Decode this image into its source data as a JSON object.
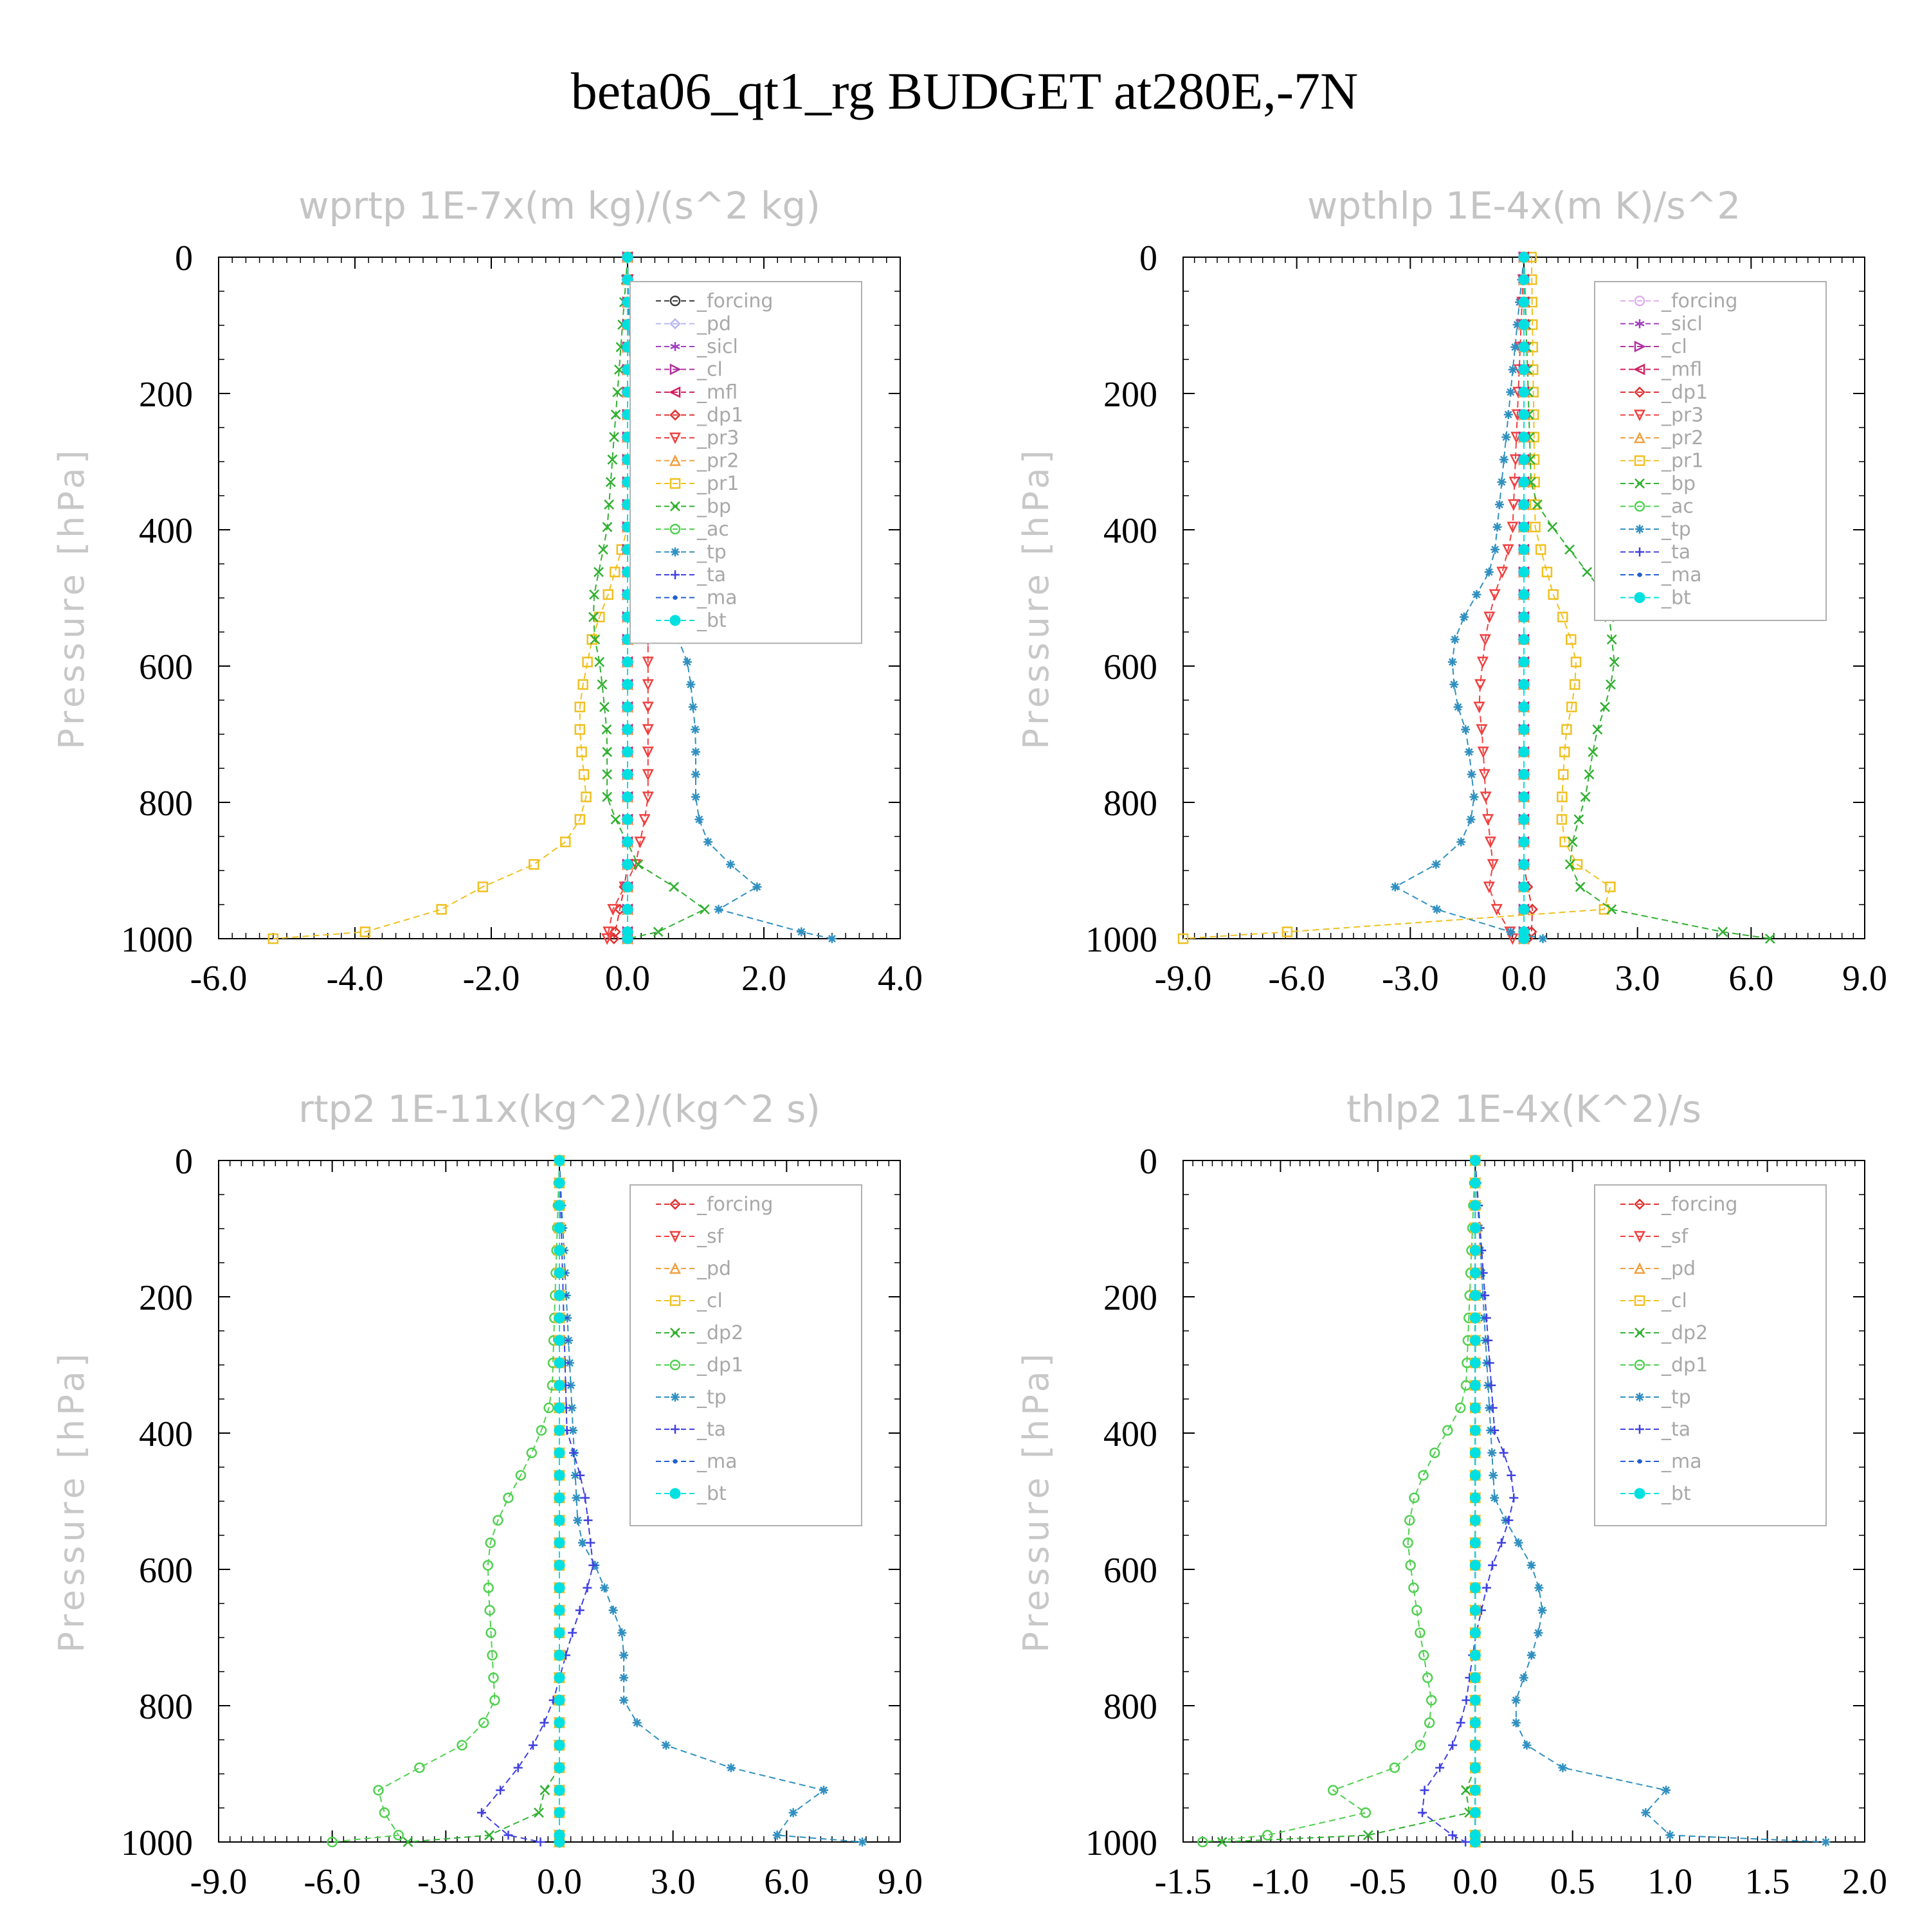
{
  "title": "beta06_qt1_rg  BUDGET at280E,-7N",
  "chart_data": [
    {
      "type": "line",
      "title": "wprtp  1E-7x(m kg)/(s^2 kg)",
      "xlabel": "",
      "ylabel": "Pressure [hPa]",
      "xlim": [
        -6.0,
        4.0
      ],
      "ylim": [
        1000,
        0
      ],
      "xticks": [
        "-6.0",
        "-4.0",
        "-2.0",
        "0.0",
        "2.0",
        "4.0"
      ],
      "yticks": [
        "0",
        "200",
        "400",
        "600",
        "800",
        "1000"
      ],
      "legend_position": "top-right",
      "series": [
        {
          "name": "_forcing",
          "color": "#404040",
          "marker": "circle-dot",
          "p": [
            0,
            1000
          ],
          "x": [
            0,
            0
          ]
        },
        {
          "name": "_pd",
          "color": "#b8b8f0",
          "marker": "diamond",
          "p": [
            0,
            1000
          ],
          "x": [
            0,
            0
          ]
        },
        {
          "name": "_sicl",
          "color": "#a040c0",
          "marker": "star",
          "p": [
            0,
            1000
          ],
          "x": [
            0,
            0
          ]
        },
        {
          "name": "_cl",
          "color": "#b030a0",
          "marker": "tri-right",
          "p": [
            0,
            1000
          ],
          "x": [
            0,
            0
          ]
        },
        {
          "name": "_mfl",
          "color": "#d02060",
          "marker": "tri-left",
          "p": [
            0,
            1000
          ],
          "x": [
            0,
            0
          ]
        },
        {
          "name": "_dp1",
          "color": "#e03030",
          "marker": "diamond",
          "p": [
            0,
            900,
            950,
            1000
          ],
          "x": [
            0,
            0,
            -0.1,
            -0.2
          ]
        },
        {
          "name": "_pr3",
          "color": "#f04040",
          "marker": "tri-down",
          "p": [
            0,
            450,
            500,
            550,
            600,
            700,
            800,
            900,
            950,
            1000
          ],
          "x": [
            0,
            0.1,
            0.3,
            0.3,
            0.3,
            0.3,
            0.3,
            0.1,
            -0.2,
            -0.3
          ]
        },
        {
          "name": "_pr2",
          "color": "#f0a040",
          "marker": "tri-up",
          "p": [
            0,
            1000
          ],
          "x": [
            0,
            0
          ]
        },
        {
          "name": "_pr1",
          "color": "#f0c020",
          "marker": "square",
          "p": [
            0,
            400,
            500,
            550,
            600,
            650,
            700,
            800,
            850,
            900,
            950,
            980,
            1000
          ],
          "x": [
            0,
            0,
            -0.3,
            -0.5,
            -0.6,
            -0.7,
            -0.7,
            -0.6,
            -0.8,
            -1.5,
            -2.8,
            -2.5,
            -5.2
          ]
        },
        {
          "name": "_bp",
          "color": "#30b030",
          "marker": "x",
          "p": [
            0,
            400,
            450,
            500,
            550,
            600,
            700,
            800,
            900,
            950,
            980,
            1000
          ],
          "x": [
            0,
            -0.3,
            -0.4,
            -0.5,
            -0.5,
            -0.4,
            -0.3,
            -0.3,
            0.2,
            1.2,
            0.9,
            0
          ]
        },
        {
          "name": "_ac",
          "color": "#50d050",
          "marker": "circle",
          "p": [
            0,
            1000
          ],
          "x": [
            0,
            0
          ]
        },
        {
          "name": "_tp",
          "color": "#3090c0",
          "marker": "asterisk",
          "p": [
            0,
            450,
            500,
            550,
            600,
            700,
            800,
            850,
            900,
            940,
            960,
            1000
          ],
          "x": [
            0,
            0.1,
            0.4,
            0.7,
            0.9,
            1.0,
            1.0,
            1.1,
            1.6,
            2.1,
            1.2,
            3.0
          ]
        },
        {
          "name": "_ta",
          "color": "#4040e0",
          "marker": "plus",
          "p": [
            0,
            1000
          ],
          "x": [
            0,
            0
          ]
        },
        {
          "name": "_ma",
          "color": "#2060d0",
          "marker": "dot",
          "p": [
            0,
            1000
          ],
          "x": [
            0,
            0
          ]
        },
        {
          "name": "_bt",
          "color": "#00e0e0",
          "marker": "filled-circle",
          "p": [
            0,
            1000
          ],
          "x": [
            0,
            0
          ]
        }
      ]
    },
    {
      "type": "line",
      "title": "wpthlp  1E-4x(m K)/s^2",
      "xlabel": "",
      "ylabel": "Pressure [hPa]",
      "xlim": [
        -9.0,
        9.0
      ],
      "ylim": [
        1000,
        0
      ],
      "xticks": [
        "-9.0",
        "-6.0",
        "-3.0",
        "0.0",
        "3.0",
        "6.0",
        "9.0"
      ],
      "yticks": [
        "0",
        "200",
        "400",
        "600",
        "800",
        "1000"
      ],
      "legend_position": "top-right",
      "series": [
        {
          "name": "_forcing",
          "color": "#e0b0f0",
          "marker": "circle-dot",
          "p": [
            0,
            1000
          ],
          "x": [
            0,
            0
          ]
        },
        {
          "name": "_sicl",
          "color": "#a040c0",
          "marker": "star",
          "p": [
            0,
            1000
          ],
          "x": [
            0,
            0
          ]
        },
        {
          "name": "_cl",
          "color": "#b030a0",
          "marker": "tri-right",
          "p": [
            0,
            1000
          ],
          "x": [
            0,
            0
          ]
        },
        {
          "name": "_mfl",
          "color": "#d02060",
          "marker": "tri-left",
          "p": [
            0,
            1000
          ],
          "x": [
            0,
            0
          ]
        },
        {
          "name": "_dp1",
          "color": "#e03030",
          "marker": "diamond",
          "p": [
            0,
            900,
            950,
            980,
            1000
          ],
          "x": [
            0,
            0,
            0.2,
            0.3,
            0.1
          ]
        },
        {
          "name": "_pr3",
          "color": "#f04040",
          "marker": "tri-down",
          "p": [
            0,
            400,
            450,
            500,
            550,
            600,
            650,
            700,
            800,
            850,
            900,
            940,
            970,
            1000
          ],
          "x": [
            0,
            -0.3,
            -0.5,
            -0.8,
            -1.0,
            -1.1,
            -1.2,
            -1.1,
            -1.0,
            -0.9,
            -0.8,
            -1.0,
            -0.5,
            -0.3
          ]
        },
        {
          "name": "_pr2",
          "color": "#f0a040",
          "marker": "tri-up",
          "p": [
            0,
            1000
          ],
          "x": [
            0,
            0
          ]
        },
        {
          "name": "_pr1",
          "color": "#f0c020",
          "marker": "square",
          "p": [
            0,
            400,
            500,
            550,
            600,
            650,
            700,
            800,
            850,
            900,
            940,
            960,
            1000
          ],
          "x": [
            0.2,
            0.3,
            0.8,
            1.2,
            1.4,
            1.3,
            1.1,
            1.0,
            1.0,
            1.5,
            2.8,
            2.0,
            -9.0
          ]
        },
        {
          "name": "_bp",
          "color": "#30b030",
          "marker": "x",
          "p": [
            0,
            350,
            400,
            450,
            500,
            550,
            600,
            650,
            700,
            800,
            850,
            900,
            950,
            980,
            1000
          ],
          "x": [
            0,
            0.2,
            0.8,
            1.5,
            2.2,
            2.3,
            2.4,
            2.2,
            1.9,
            1.6,
            1.3,
            1.2,
            1.8,
            4.0,
            6.5
          ]
        },
        {
          "name": "_ac",
          "color": "#50d050",
          "marker": "circle",
          "p": [
            0,
            1000
          ],
          "x": [
            0,
            0
          ]
        },
        {
          "name": "_tp",
          "color": "#3090c0",
          "marker": "asterisk",
          "p": [
            0,
            450,
            500,
            550,
            600,
            650,
            700,
            800,
            850,
            900,
            940,
            960,
            980,
            1000
          ],
          "x": [
            0,
            -0.8,
            -1.3,
            -1.8,
            -1.9,
            -1.8,
            -1.5,
            -1.3,
            -1.5,
            -2.5,
            -4.0,
            -2.0,
            -1.2,
            0.5
          ]
        },
        {
          "name": "_ta",
          "color": "#4040e0",
          "marker": "plus",
          "p": [
            0,
            1000
          ],
          "x": [
            0,
            0
          ]
        },
        {
          "name": "_ma",
          "color": "#2060d0",
          "marker": "dot",
          "p": [
            0,
            1000
          ],
          "x": [
            0,
            0
          ]
        },
        {
          "name": "_bt",
          "color": "#00e0e0",
          "marker": "filled-circle",
          "p": [
            0,
            1000
          ],
          "x": [
            0,
            0
          ]
        }
      ]
    },
    {
      "type": "line",
      "title": "rtp2  1E-11x(kg^2)/(kg^2 s)",
      "xlabel": "",
      "ylabel": "Pressure [hPa]",
      "xlim": [
        -9.0,
        9.0
      ],
      "ylim": [
        1000,
        0
      ],
      "xticks": [
        "-9.0",
        "-6.0",
        "-3.0",
        "0.0",
        "3.0",
        "6.0",
        "9.0"
      ],
      "yticks": [
        "0",
        "200",
        "400",
        "600",
        "800",
        "1000"
      ],
      "legend_position": "top-right",
      "series": [
        {
          "name": "_forcing",
          "color": "#e03030",
          "marker": "diamond",
          "p": [
            0,
            1000
          ],
          "x": [
            0,
            0
          ]
        },
        {
          "name": "_sf",
          "color": "#f04040",
          "marker": "tri-down",
          "p": [
            0,
            1000
          ],
          "x": [
            0,
            0
          ]
        },
        {
          "name": "_pd",
          "color": "#f0a040",
          "marker": "tri-up",
          "p": [
            0,
            1000
          ],
          "x": [
            0,
            0
          ]
        },
        {
          "name": "_cl",
          "color": "#f0c020",
          "marker": "square",
          "p": [
            0,
            1000
          ],
          "x": [
            0,
            0
          ]
        },
        {
          "name": "_dp2",
          "color": "#30b030",
          "marker": "x",
          "p": [
            0,
            900,
            950,
            980,
            1000
          ],
          "x": [
            0,
            0,
            -0.8,
            0.3,
            -4.0
          ]
        },
        {
          "name": "_dp1",
          "color": "#50d050",
          "marker": "circle",
          "p": [
            0,
            350,
            400,
            450,
            500,
            550,
            600,
            700,
            800,
            850,
            900,
            940,
            960,
            980,
            1000
          ],
          "x": [
            0,
            -0.2,
            -0.5,
            -0.9,
            -1.4,
            -1.8,
            -1.9,
            -1.8,
            -1.7,
            -2.3,
            -4.0,
            -5.3,
            -4.5,
            -2.5,
            -6.0
          ]
        },
        {
          "name": "_tp",
          "color": "#3090c0",
          "marker": "asterisk",
          "p": [
            0,
            550,
            600,
            700,
            800,
            850,
            900,
            940,
            960,
            980,
            1000
          ],
          "x": [
            0,
            0.5,
            1.0,
            1.7,
            1.7,
            2.4,
            5.0,
            8.3,
            5.8,
            3.5,
            8.0
          ]
        },
        {
          "name": "_ta",
          "color": "#4040e0",
          "marker": "plus",
          "p": [
            0,
            400,
            450,
            500,
            550,
            600,
            650,
            700,
            800,
            850,
            900,
            940,
            960,
            980,
            1000
          ],
          "x": [
            0,
            0.2,
            0.5,
            0.7,
            0.8,
            0.9,
            0.6,
            0.3,
            -0.2,
            -0.6,
            -1.2,
            -1.8,
            -2.1,
            -2.2,
            -0.5
          ]
        },
        {
          "name": "_ma",
          "color": "#2060d0",
          "marker": "dot",
          "p": [
            0,
            1000
          ],
          "x": [
            0,
            0
          ]
        },
        {
          "name": "_bt",
          "color": "#00e0e0",
          "marker": "filled-circle",
          "p": [
            0,
            1000
          ],
          "x": [
            0,
            0
          ]
        }
      ]
    },
    {
      "type": "line",
      "title": "thlp2  1E-4x(K^2)/s",
      "xlabel": "",
      "ylabel": "Pressure [hPa]",
      "xlim": [
        -1.5,
        2.0
      ],
      "ylim": [
        1000,
        0
      ],
      "xticks": [
        "-1.5",
        "-1.0",
        "-0.5",
        "0.0",
        "0.5",
        "1.0",
        "1.5",
        "2.0"
      ],
      "yticks": [
        "0",
        "200",
        "400",
        "600",
        "800",
        "1000"
      ],
      "legend_position": "top-right",
      "series": [
        {
          "name": "_forcing",
          "color": "#e03030",
          "marker": "diamond",
          "p": [
            0,
            1000
          ],
          "x": [
            0,
            0
          ]
        },
        {
          "name": "_sf",
          "color": "#f04040",
          "marker": "tri-down",
          "p": [
            0,
            1000
          ],
          "x": [
            0,
            0
          ]
        },
        {
          "name": "_pd",
          "color": "#f0a040",
          "marker": "tri-up",
          "p": [
            0,
            1000
          ],
          "x": [
            0,
            0
          ]
        },
        {
          "name": "_cl",
          "color": "#f0c020",
          "marker": "square",
          "p": [
            0,
            1000
          ],
          "x": [
            0,
            0
          ]
        },
        {
          "name": "_dp2",
          "color": "#30b030",
          "marker": "x",
          "p": [
            0,
            900,
            950,
            980,
            1000
          ],
          "x": [
            0,
            0,
            -0.1,
            0.2,
            -1.3
          ]
        },
        {
          "name": "_dp1",
          "color": "#50d050",
          "marker": "circle",
          "p": [
            0,
            350,
            400,
            450,
            500,
            550,
            600,
            700,
            800,
            850,
            900,
            930,
            950,
            970,
            1000
          ],
          "x": [
            0,
            -0.05,
            -0.15,
            -0.25,
            -0.32,
            -0.35,
            -0.33,
            -0.28,
            -0.22,
            -0.25,
            -0.45,
            -0.8,
            -0.65,
            -0.4,
            -1.4
          ]
        },
        {
          "name": "_tp",
          "color": "#3090c0",
          "marker": "asterisk",
          "p": [
            0,
            500,
            550,
            600,
            650,
            700,
            800,
            850,
            900,
            940,
            960,
            980,
            1000
          ],
          "x": [
            0,
            0.1,
            0.2,
            0.3,
            0.35,
            0.32,
            0.2,
            0.22,
            0.5,
            1.3,
            0.8,
            0.2,
            1.8
          ]
        },
        {
          "name": "_ta",
          "color": "#4040e0",
          "marker": "plus",
          "p": [
            0,
            400,
            450,
            500,
            550,
            600,
            700,
            800,
            850,
            900,
            940,
            970,
            1000
          ],
          "x": [
            0,
            0.1,
            0.18,
            0.2,
            0.15,
            0.08,
            0.0,
            -0.05,
            -0.1,
            -0.2,
            -0.3,
            -0.25,
            -0.05
          ]
        },
        {
          "name": "_ma",
          "color": "#2060d0",
          "marker": "dot",
          "p": [
            0,
            1000
          ],
          "x": [
            0,
            0
          ]
        },
        {
          "name": "_bt",
          "color": "#00e0e0",
          "marker": "filled-circle",
          "p": [
            0,
            1000
          ],
          "x": [
            0,
            0
          ]
        }
      ]
    }
  ]
}
